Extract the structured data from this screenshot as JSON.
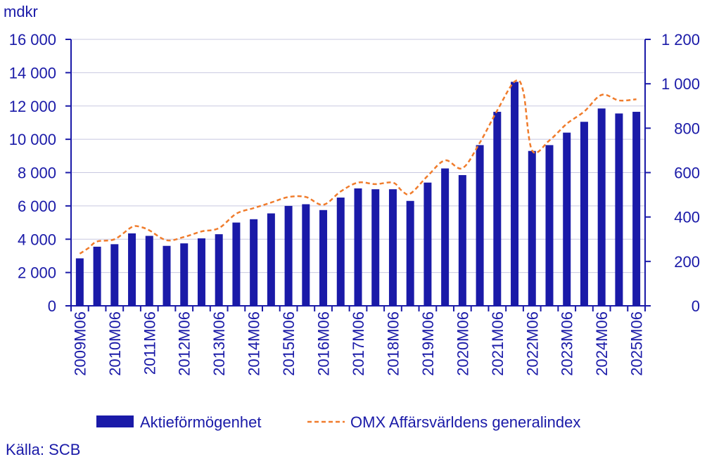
{
  "chart_data": {
    "type": "bar",
    "y_unit_label": "mdkr",
    "categories": [
      "2009M06",
      "2009M12",
      "2010M06",
      "2010M12",
      "2011M06",
      "2011M12",
      "2012M06",
      "2012M12",
      "2013M06",
      "2013M12",
      "2014M06",
      "2014M12",
      "2015M06",
      "2015M12",
      "2016M06",
      "2016M12",
      "2017M06",
      "2017M12",
      "2018M06",
      "2018M12",
      "2019M06",
      "2019M12",
      "2020M06",
      "2020M12",
      "2021M06",
      "2021M12",
      "2022M06",
      "2022M12",
      "2023M06",
      "2023M12",
      "2024M06",
      "2024M12",
      "2025M06"
    ],
    "x_tick_labels": [
      "2009M06",
      "2010M06",
      "2011M06",
      "2012M06",
      "2013M06",
      "2014M06",
      "2015M06",
      "2016M06",
      "2017M06",
      "2018M06",
      "2019M06",
      "2020M06",
      "2021M06",
      "2022M06",
      "2023M06",
      "2024M06",
      "2025M06"
    ],
    "series": [
      {
        "name": "Aktieförmögenhet",
        "kind": "bar",
        "axis": "left",
        "color": "#1a1aa8",
        "values": [
          2850,
          3550,
          3700,
          4350,
          4200,
          3600,
          3750,
          4050,
          4300,
          5000,
          5200,
          5550,
          6000,
          6100,
          5750,
          6500,
          7050,
          7000,
          7000,
          6300,
          7400,
          8250,
          7850,
          9650,
          11650,
          13450,
          9300,
          9650,
          10400,
          11050,
          11850,
          11550,
          11650
        ]
      },
      {
        "name": "OMX Affärsvärldens generalindex",
        "kind": "line",
        "style": "dashed",
        "axis": "right",
        "color": "#f07c2c",
        "points": [
          [
            0,
            235
          ],
          [
            0.5,
            260
          ],
          [
            1,
            290
          ],
          [
            2,
            300
          ],
          [
            3,
            355
          ],
          [
            3.5,
            355
          ],
          [
            4,
            340
          ],
          [
            5,
            295
          ],
          [
            6,
            310
          ],
          [
            7,
            335
          ],
          [
            8,
            350
          ],
          [
            9,
            415
          ],
          [
            10,
            440
          ],
          [
            11,
            465
          ],
          [
            12,
            490
          ],
          [
            13,
            490
          ],
          [
            14,
            455
          ],
          [
            15,
            515
          ],
          [
            16,
            555
          ],
          [
            17,
            548
          ],
          [
            18,
            555
          ],
          [
            18.5,
            520
          ],
          [
            19,
            505
          ],
          [
            20,
            585
          ],
          [
            21,
            655
          ],
          [
            22,
            620
          ],
          [
            23,
            735
          ],
          [
            24,
            880
          ],
          [
            25,
            1010
          ],
          [
            25.5,
            965
          ],
          [
            26,
            700
          ],
          [
            27,
            745
          ],
          [
            28,
            820
          ],
          [
            29,
            875
          ],
          [
            30,
            950
          ],
          [
            31,
            925
          ],
          [
            32,
            930
          ]
        ]
      }
    ],
    "y_left_ticks": [
      "0",
      "2 000",
      "4 000",
      "6 000",
      "8 000",
      "10 000",
      "12 000",
      "14 000",
      "16 000"
    ],
    "y_left_lim": [
      0,
      16000
    ],
    "y_right_ticks": [
      "0",
      "200",
      "400",
      "600",
      "800",
      "1 000",
      "1 200"
    ],
    "y_right_lim": [
      0,
      1200
    ],
    "grid": "horizontal",
    "legend_position": "bottom",
    "source": "Källa: SCB"
  }
}
